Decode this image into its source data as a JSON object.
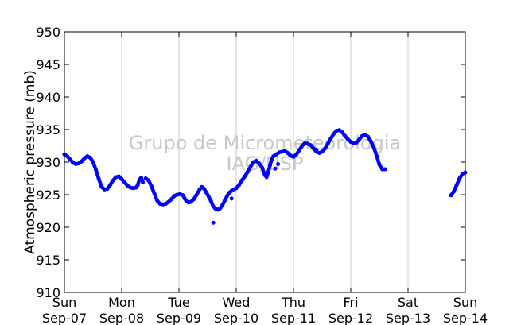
{
  "chart_data": {
    "type": "scatter",
    "title": "",
    "xlabel": "",
    "ylabel": "Atmospheric pressure (mb)",
    "ylim": [
      910,
      950
    ],
    "yticks": [
      910,
      915,
      920,
      925,
      930,
      935,
      940,
      945,
      950
    ],
    "xlim": [
      "2008-09-07",
      "2008-09-14"
    ],
    "xticks": [
      {
        "day": "Sun",
        "date": "Sep-07"
      },
      {
        "day": "Mon",
        "date": "Sep-08"
      },
      {
        "day": "Tue",
        "date": "Sep-09"
      },
      {
        "day": "Wed",
        "date": "Sep-10"
      },
      {
        "day": "Thu",
        "date": "Sep-11"
      },
      {
        "day": "Fri",
        "date": "Sep-12"
      },
      {
        "day": "Sat",
        "date": "Sep-13"
      },
      {
        "day": "Sun",
        "date": "Sep-14"
      }
    ],
    "grid": "vertical",
    "watermark": [
      "Grupo de Micrometeorologia",
      "IAG/USP"
    ],
    "series": [
      {
        "color": "#0000ff",
        "x_unit": "days from Sep-07 00:00",
        "segments": [
          [
            [
              0.0,
              931.2
            ],
            [
              0.05,
              930.9
            ],
            [
              0.1,
              930.4
            ],
            [
              0.15,
              929.9
            ],
            [
              0.2,
              929.7
            ],
            [
              0.25,
              929.8
            ],
            [
              0.3,
              930.1
            ],
            [
              0.35,
              930.6
            ],
            [
              0.4,
              930.9
            ],
            [
              0.45,
              930.7
            ],
            [
              0.5,
              930.0
            ],
            [
              0.55,
              928.8
            ],
            [
              0.6,
              927.4
            ],
            [
              0.65,
              926.2
            ],
            [
              0.7,
              925.8
            ],
            [
              0.75,
              925.9
            ],
            [
              0.8,
              926.5
            ],
            [
              0.85,
              927.2
            ],
            [
              0.9,
              927.7
            ],
            [
              0.95,
              927.8
            ],
            [
              1.0,
              927.4
            ],
            [
              1.05,
              926.9
            ],
            [
              1.1,
              926.4
            ],
            [
              1.15,
              926.1
            ],
            [
              1.2,
              926.0
            ],
            [
              1.25,
              926.1
            ],
            [
              1.28,
              926.5
            ],
            [
              1.31,
              927.3
            ],
            [
              1.34,
              927.6
            ],
            [
              1.37,
              926.9
            ]
          ],
          [
            [
              1.42,
              927.5
            ],
            [
              1.47,
              927.2
            ],
            [
              1.52,
              926.3
            ],
            [
              1.57,
              925.2
            ],
            [
              1.62,
              924.1
            ],
            [
              1.67,
              923.6
            ],
            [
              1.72,
              923.5
            ],
            [
              1.77,
              923.6
            ],
            [
              1.82,
              923.9
            ],
            [
              1.87,
              924.3
            ],
            [
              1.92,
              924.8
            ],
            [
              1.97,
              925.0
            ],
            [
              2.02,
              925.1
            ],
            [
              2.07,
              924.9
            ],
            [
              2.1,
              924.4
            ],
            [
              2.13,
              924.0
            ],
            [
              2.17,
              923.8
            ],
            [
              2.21,
              923.9
            ],
            [
              2.26,
              924.3
            ],
            [
              2.31,
              925.0
            ],
            [
              2.36,
              925.8
            ],
            [
              2.4,
              926.2
            ],
            [
              2.44,
              925.9
            ],
            [
              2.48,
              925.3
            ],
            [
              2.52,
              924.7
            ],
            [
              2.56,
              924.0
            ],
            [
              2.6,
              923.2
            ],
            [
              2.64,
              922.8
            ],
            [
              2.68,
              922.7
            ],
            [
              2.72,
              922.9
            ],
            [
              2.76,
              923.4
            ],
            [
              2.8,
              924.1
            ],
            [
              2.84,
              924.8
            ],
            [
              2.88,
              925.3
            ],
            [
              2.92,
              925.6
            ],
            [
              2.96,
              925.8
            ],
            [
              3.0,
              926.0
            ],
            [
              3.05,
              926.5
            ],
            [
              3.1,
              927.2
            ],
            [
              3.15,
              927.8
            ],
            [
              3.2,
              928.5
            ],
            [
              3.25,
              929.3
            ],
            [
              3.3,
              930.0
            ],
            [
              3.35,
              930.2
            ],
            [
              3.4,
              929.8
            ],
            [
              3.45,
              929.2
            ],
            [
              3.5,
              928.0
            ],
            [
              3.53,
              927.7
            ],
            [
              3.56,
              928.5
            ],
            [
              3.59,
              929.5
            ],
            [
              3.62,
              930.4
            ],
            [
              3.65,
              930.9
            ],
            [
              3.7,
              931.2
            ],
            [
              3.75,
              931.5
            ],
            [
              3.8,
              931.6
            ],
            [
              3.85,
              931.7
            ],
            [
              3.9,
              931.4
            ],
            [
              3.95,
              931.0
            ],
            [
              4.0,
              930.8
            ],
            [
              4.05,
              931.2
            ],
            [
              4.1,
              931.8
            ],
            [
              4.15,
              932.5
            ],
            [
              4.2,
              932.9
            ],
            [
              4.25,
              932.8
            ],
            [
              4.3,
              932.6
            ],
            [
              4.35,
              932.1
            ],
            [
              4.4,
              931.6
            ],
            [
              4.45,
              931.4
            ],
            [
              4.5,
              931.6
            ],
            [
              4.55,
              932.1
            ],
            [
              4.6,
              932.8
            ],
            [
              4.65,
              933.6
            ],
            [
              4.7,
              934.3
            ],
            [
              4.75,
              934.8
            ],
            [
              4.8,
              934.9
            ],
            [
              4.85,
              934.6
            ],
            [
              4.9,
              934.0
            ],
            [
              4.95,
              933.5
            ],
            [
              5.0,
              933.1
            ],
            [
              5.05,
              932.9
            ],
            [
              5.1,
              933.0
            ],
            [
              5.15,
              933.5
            ],
            [
              5.2,
              934.0
            ],
            [
              5.25,
              934.2
            ],
            [
              5.3,
              933.9
            ],
            [
              5.35,
              933.2
            ],
            [
              5.4,
              932.3
            ],
            [
              5.45,
              931.0
            ],
            [
              5.5,
              929.6
            ],
            [
              5.55,
              928.9
            ],
            [
              5.6,
              928.9
            ]
          ],
          [
            [
              6.75,
              924.9
            ],
            [
              6.8,
              925.5
            ],
            [
              6.85,
              926.5
            ],
            [
              6.9,
              927.5
            ],
            [
              6.95,
              928.2
            ],
            [
              7.0,
              928.4
            ]
          ]
        ],
        "outliers": [
          [
            2.6,
            920.7
          ],
          [
            2.92,
            924.4
          ],
          [
            3.68,
            929.0
          ],
          [
            3.73,
            929.7
          ],
          [
            4.4,
            931.9
          ]
        ]
      }
    ]
  }
}
